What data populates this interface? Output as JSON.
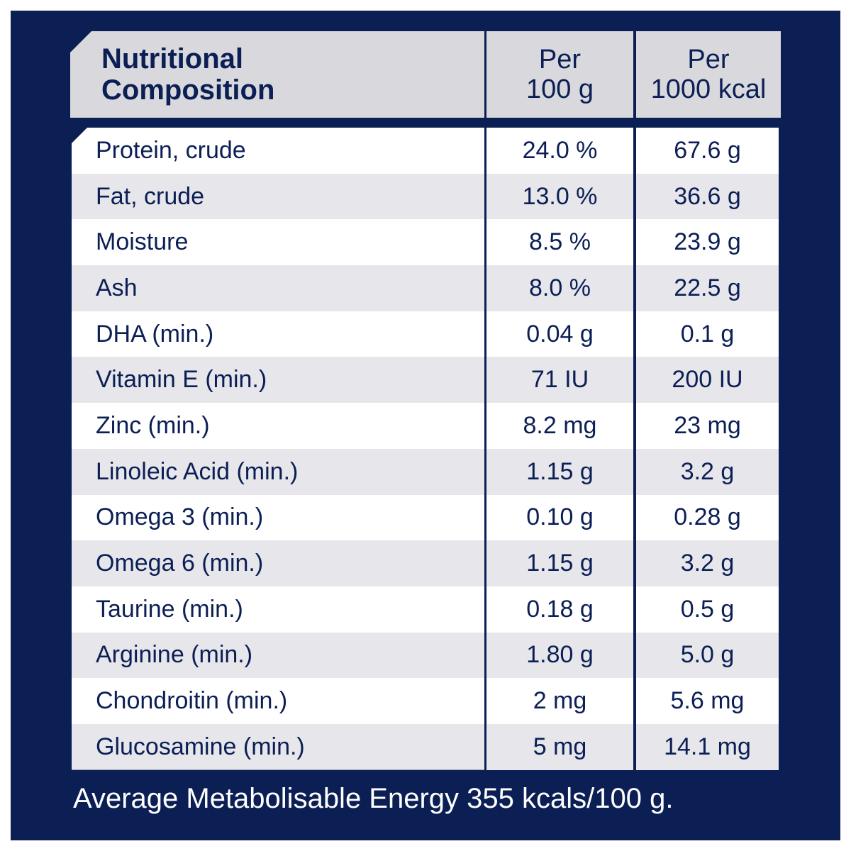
{
  "header": {
    "title_line1": "Nutritional",
    "title_line2": "Composition",
    "col2_line1": "Per",
    "col2_line2": "100 g",
    "col3_line1": "Per",
    "col3_line2": "1000 kcal"
  },
  "rows": [
    {
      "name": "Protein, crude",
      "per100g": "24.0 %",
      "per1000kcal": "67.6 g"
    },
    {
      "name": "Fat, crude",
      "per100g": "13.0 %",
      "per1000kcal": "36.6 g"
    },
    {
      "name": "Moisture",
      "per100g": "8.5 %",
      "per1000kcal": "23.9 g"
    },
    {
      "name": "Ash",
      "per100g": "8.0 %",
      "per1000kcal": "22.5 g"
    },
    {
      "name": "DHA (min.)",
      "per100g": "0.04 g",
      "per1000kcal": "0.1 g"
    },
    {
      "name": "Vitamin E (min.)",
      "per100g": "71 IU",
      "per1000kcal": "200 IU"
    },
    {
      "name": "Zinc (min.)",
      "per100g": "8.2 mg",
      "per1000kcal": "23 mg"
    },
    {
      "name": "Linoleic Acid (min.)",
      "per100g": "1.15 g",
      "per1000kcal": "3.2 g"
    },
    {
      "name": "Omega 3 (min.)",
      "per100g": "0.10 g",
      "per1000kcal": "0.28 g"
    },
    {
      "name": "Omega 6 (min.)",
      "per100g": "1.15 g",
      "per1000kcal": "3.2 g"
    },
    {
      "name": "Taurine (min.)",
      "per100g": "0.18 g",
      "per1000kcal": "0.5 g"
    },
    {
      "name": "Arginine (min.)",
      "per100g": "1.80 g",
      "per1000kcal": "5.0 g"
    },
    {
      "name": "Chondroitin (min.)",
      "per100g": "2 mg",
      "per1000kcal": "5.6 mg"
    },
    {
      "name": "Glucosamine (min.)",
      "per100g": "5 mg",
      "per1000kcal": "14.1 mg"
    }
  ],
  "footer": "Average Metabolisable Energy 355 kcals/100 g.",
  "colors": {
    "navy": "#0c1f55",
    "header_gray": "#d8d8dd",
    "stripe": "#e6e6eb"
  }
}
